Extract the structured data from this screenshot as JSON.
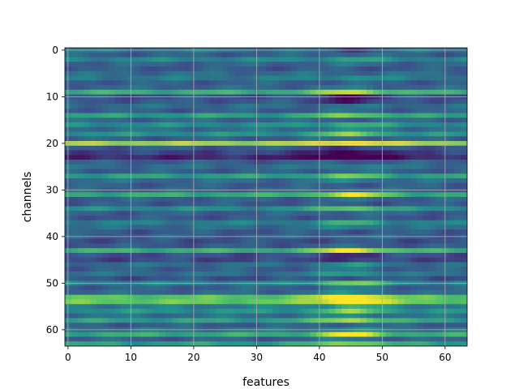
{
  "chart_data": {
    "type": "heatmap",
    "title": "",
    "xlabel": "features",
    "ylabel": "channels",
    "rows": 64,
    "cols": 64,
    "xlim": [
      -0.5,
      63.5
    ],
    "ylim": [
      63.5,
      -0.5
    ],
    "xticks": [
      0,
      10,
      20,
      30,
      40,
      50,
      60
    ],
    "yticks": [
      0,
      10,
      20,
      30,
      40,
      50,
      60
    ],
    "grid": true,
    "grid_color": "#b0b0b0",
    "colormap": "viridis",
    "colormap_stops": [
      "#440154",
      "#3b528b",
      "#21918c",
      "#5ec962",
      "#fde725"
    ],
    "value_range": [
      0,
      1
    ],
    "row_base": [
      0.38,
      0.3,
      0.45,
      0.32,
      0.28,
      0.35,
      0.4,
      0.3,
      0.33,
      0.62,
      0.25,
      0.28,
      0.35,
      0.3,
      0.55,
      0.33,
      0.48,
      0.36,
      0.5,
      0.3,
      0.85,
      0.28,
      0.2,
      0.12,
      0.3,
      0.35,
      0.3,
      0.55,
      0.35,
      0.3,
      0.33,
      0.6,
      0.3,
      0.28,
      0.48,
      0.3,
      0.28,
      0.42,
      0.35,
      0.28,
      0.3,
      0.25,
      0.28,
      0.62,
      0.25,
      0.22,
      0.35,
      0.3,
      0.36,
      0.25,
      0.45,
      0.3,
      0.33,
      0.72,
      0.75,
      0.42,
      0.5,
      0.36,
      0.55,
      0.3,
      0.38,
      0.6,
      0.3,
      0.55
    ],
    "row_bump": [
      -0.15,
      0.05,
      0.1,
      0.05,
      0.0,
      0.0,
      0.1,
      0.0,
      0.05,
      0.3,
      -0.2,
      -0.2,
      0.0,
      0.05,
      0.25,
      0.0,
      0.15,
      0.1,
      0.3,
      0.05,
      0.2,
      -0.1,
      -0.25,
      -0.4,
      0.0,
      0.1,
      0.05,
      0.2,
      0.1,
      0.0,
      0.05,
      0.35,
      0.05,
      0.0,
      0.3,
      0.05,
      0.0,
      0.2,
      0.1,
      0.0,
      0.05,
      0.0,
      0.05,
      0.4,
      -0.1,
      -0.05,
      0.15,
      0.1,
      0.2,
      0.05,
      0.35,
      0.1,
      0.15,
      0.4,
      0.35,
      0.2,
      0.3,
      0.1,
      0.35,
      0.05,
      0.1,
      0.4,
      0.1,
      0.3
    ]
  }
}
